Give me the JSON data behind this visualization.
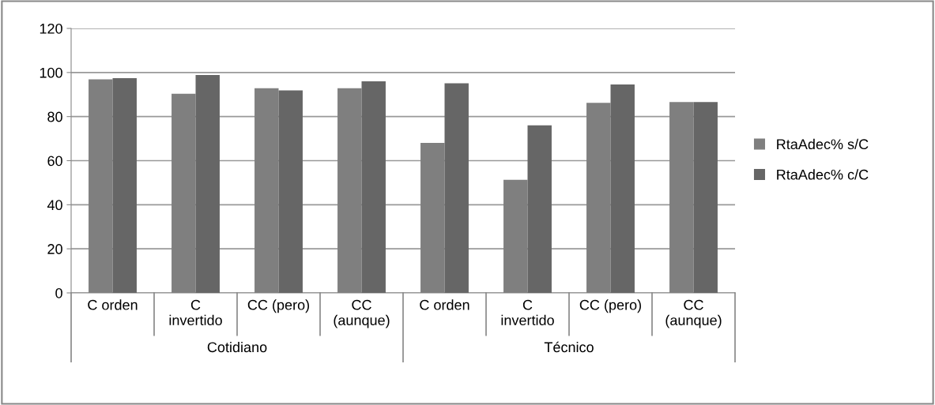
{
  "chart_data": {
    "type": "bar",
    "categories": [
      "C orden",
      "C\ninvertido",
      "CC (pero)",
      "CC\n(aunque)",
      "C orden",
      "C\ninvertido",
      "CC (pero)",
      "CC\n(aunque)"
    ],
    "series": [
      {
        "name": "RtaAdec% s/C",
        "color": "#7f7f7f",
        "values": [
          96.9,
          90.4,
          92.9,
          92.9,
          68.1,
          51.3,
          86.2,
          86.6
        ]
      },
      {
        "name": "RtaAdec% c/C",
        "color": "#666666",
        "values": [
          97.4,
          98.9,
          91.9,
          96.0,
          95.1,
          76.0,
          94.6,
          86.6
        ]
      }
    ],
    "annotations": [
      "Cotidiano",
      "Técnico"
    ],
    "ylim": [
      0,
      120
    ],
    "yticks": [
      0,
      20,
      40,
      60,
      80,
      100,
      120
    ],
    "grid": "y",
    "legend": "right"
  }
}
